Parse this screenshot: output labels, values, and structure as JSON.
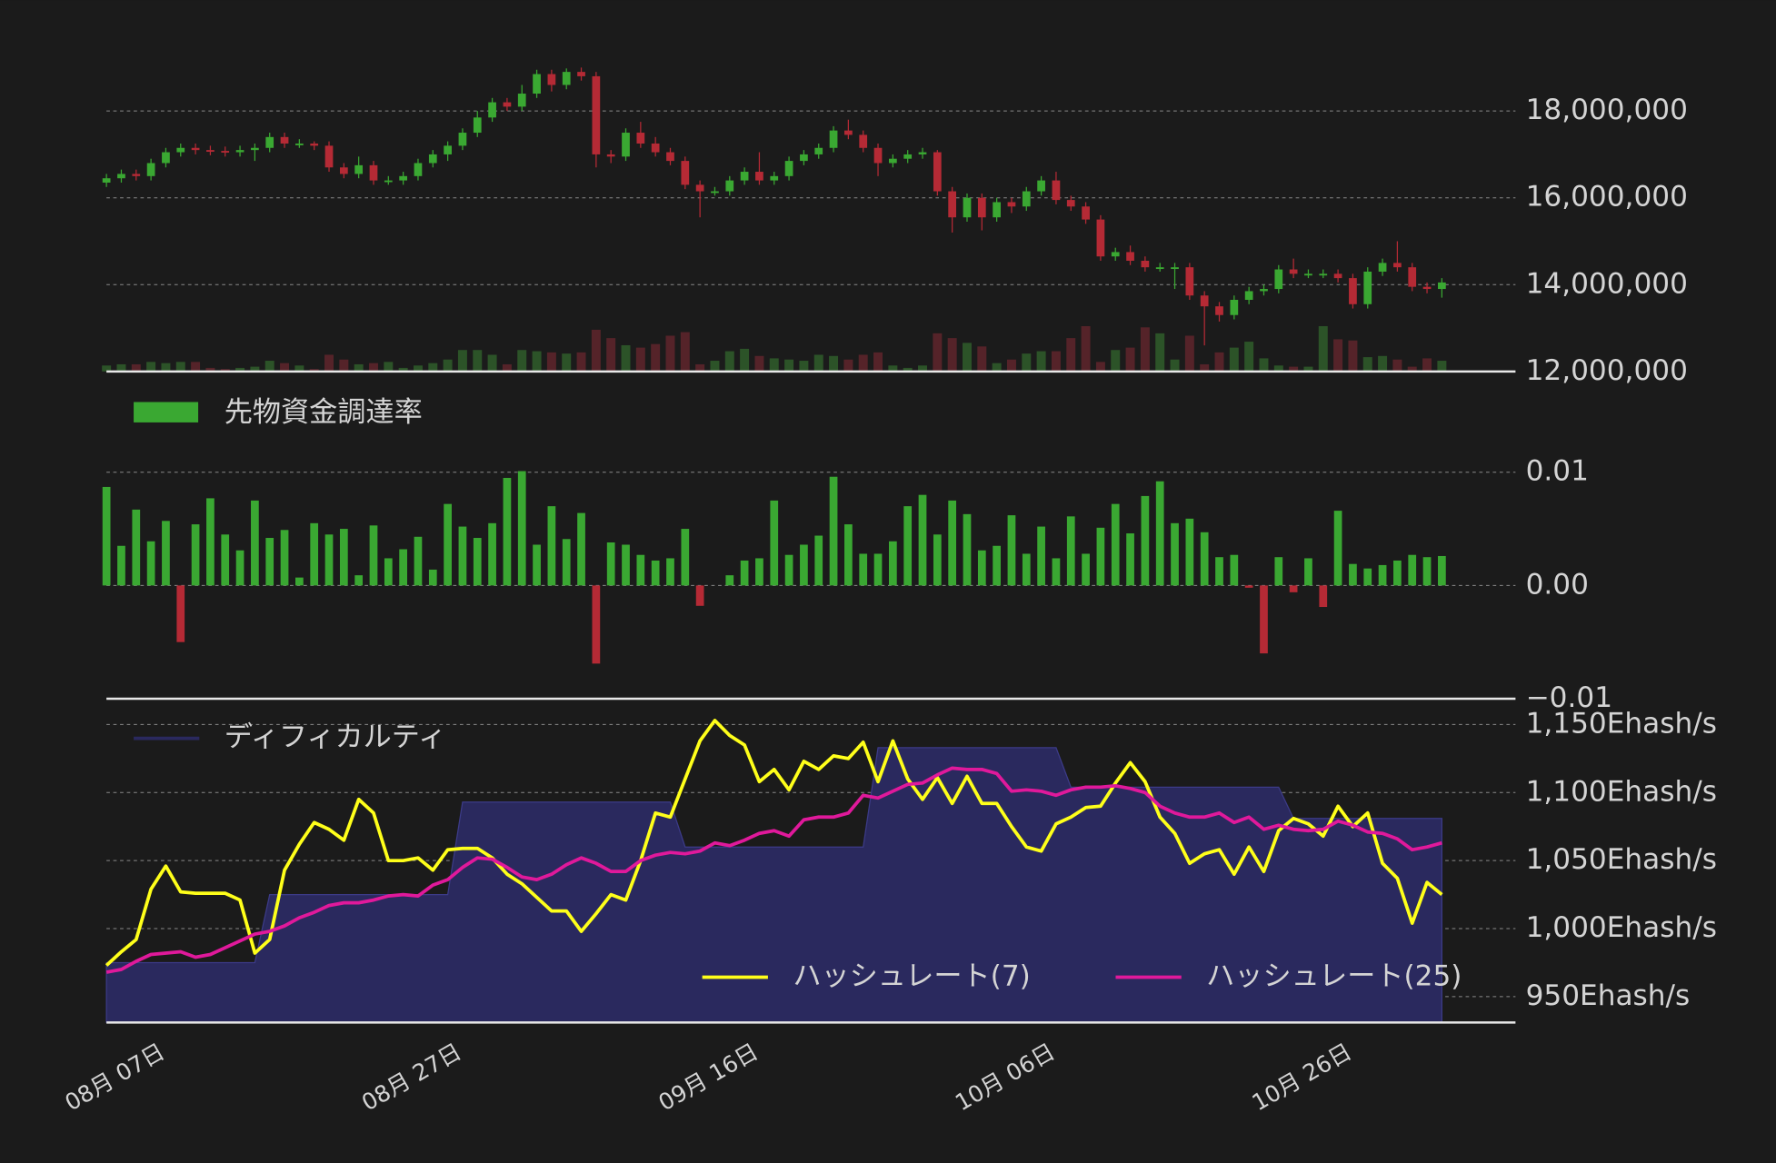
{
  "chart_data": [
    {
      "type": "candlestick",
      "grid": true,
      "up_color": "#3aa832",
      "down_color": "#b52a35",
      "volume_up_color": "#2c5328",
      "volume_down_color": "#552329",
      "ylim": [
        12000000,
        19120000
      ],
      "yticks": [
        {
          "value": 12000000,
          "label": "12,000,000"
        },
        {
          "value": 14000000,
          "label": "14,000,000"
        },
        {
          "value": 16000000,
          "label": "16,000,000"
        },
        {
          "value": 18000000,
          "label": "18,000,000"
        }
      ],
      "open": [
        16350000,
        16450000,
        16550000,
        16500000,
        16800000,
        17050000,
        17150000,
        17100000,
        17080000,
        17050000,
        17100000,
        17150000,
        17400000,
        17250000,
        17250000,
        17200000,
        16700000,
        16550000,
        16750000,
        16400000,
        16400000,
        16500000,
        16800000,
        17000000,
        17200000,
        17500000,
        17850000,
        18200000,
        18100000,
        18400000,
        18850000,
        18600000,
        18900000,
        18800000,
        17000000,
        16950000,
        17500000,
        17250000,
        17050000,
        16850000,
        16300000,
        16150000,
        16150000,
        16400000,
        16600000,
        16400000,
        16500000,
        16850000,
        17000000,
        17150000,
        17550000,
        17450000,
        17150000,
        16800000,
        16900000,
        17000000,
        17050000,
        16150000,
        15550000,
        16000000,
        15550000,
        15900000,
        15800000,
        16150000,
        16400000,
        15950000,
        15800000,
        15500000,
        14650000,
        14750000,
        14550000,
        14400000,
        14400000,
        14400000,
        13750000,
        13500000,
        13300000,
        13650000,
        13850000,
        13900000,
        14350000,
        14250000,
        14250000,
        14250000,
        14150000,
        13550000,
        14300000,
        14500000,
        14400000,
        13950000,
        13900000
      ],
      "high": [
        16550000,
        16650000,
        16650000,
        16900000,
        17150000,
        17250000,
        17250000,
        17200000,
        17180000,
        17200000,
        17250000,
        17500000,
        17500000,
        17350000,
        17300000,
        17300000,
        16800000,
        16950000,
        16850000,
        16500000,
        16600000,
        16900000,
        17100000,
        17300000,
        17600000,
        18000000,
        18300000,
        18300000,
        18600000,
        18950000,
        18950000,
        18980000,
        19000000,
        18900000,
        17100000,
        17600000,
        17750000,
        17400000,
        17150000,
        16950000,
        16400000,
        16250000,
        16500000,
        16700000,
        17050000,
        16600000,
        16950000,
        17100000,
        17250000,
        17650000,
        17800000,
        17550000,
        17250000,
        17000000,
        17100000,
        17150000,
        17100000,
        16250000,
        16100000,
        16100000,
        16000000,
        16000000,
        16250000,
        16500000,
        16600000,
        16050000,
        15900000,
        15600000,
        14850000,
        14900000,
        14650000,
        14500000,
        14500000,
        14500000,
        13850000,
        13600000,
        13750000,
        13950000,
        14000000,
        14450000,
        14600000,
        14350000,
        14350000,
        14350000,
        14250000,
        14400000,
        14600000,
        15000000,
        14500000,
        14050000,
        14150000
      ],
      "low": [
        16250000,
        16350000,
        16400000,
        16400000,
        16700000,
        16950000,
        17000000,
        16980000,
        16950000,
        16950000,
        16850000,
        17050000,
        17150000,
        17150000,
        17100000,
        16600000,
        16450000,
        16450000,
        16300000,
        16300000,
        16300000,
        16400000,
        16700000,
        16850000,
        17100000,
        17400000,
        17750000,
        18000000,
        18000000,
        18300000,
        18450000,
        18500000,
        18700000,
        16700000,
        16800000,
        16850000,
        17150000,
        16950000,
        16750000,
        16200000,
        15550000,
        16050000,
        16050000,
        16300000,
        16300000,
        16300000,
        16400000,
        16750000,
        16900000,
        17050000,
        17350000,
        17050000,
        16500000,
        16700000,
        16800000,
        16900000,
        16050000,
        15200000,
        15450000,
        15250000,
        15450000,
        15650000,
        15700000,
        16050000,
        15850000,
        15700000,
        15400000,
        14550000,
        14550000,
        14450000,
        14300000,
        14300000,
        13900000,
        13650000,
        12600000,
        13150000,
        13200000,
        13550000,
        13750000,
        13800000,
        14150000,
        14150000,
        14150000,
        14050000,
        13450000,
        13450000,
        14200000,
        14300000,
        13850000,
        13800000,
        13700000
      ],
      "close": [
        16450000,
        16550000,
        16500000,
        16800000,
        17050000,
        17150000,
        17100000,
        17080000,
        17050000,
        17100000,
        17150000,
        17400000,
        17250000,
        17250000,
        17200000,
        16700000,
        16550000,
        16750000,
        16400000,
        16400000,
        16500000,
        16800000,
        17000000,
        17200000,
        17500000,
        17850000,
        18200000,
        18100000,
        18400000,
        18850000,
        18600000,
        18900000,
        18800000,
        17000000,
        16950000,
        17500000,
        17250000,
        17050000,
        16850000,
        16300000,
        16150000,
        16150000,
        16400000,
        16600000,
        16400000,
        16500000,
        16850000,
        17000000,
        17150000,
        17550000,
        17450000,
        17150000,
        16800000,
        16900000,
        17000000,
        17050000,
        16150000,
        15550000,
        16000000,
        15550000,
        15900000,
        15800000,
        16150000,
        16400000,
        15950000,
        15800000,
        15500000,
        14650000,
        14750000,
        14550000,
        14400000,
        14400000,
        14400000,
        13750000,
        13500000,
        13300000,
        13650000,
        13850000,
        13900000,
        14350000,
        14250000,
        14250000,
        14250000,
        14150000,
        13550000,
        14300000,
        14500000,
        14400000,
        13950000,
        13900000,
        14050000
      ],
      "volume": [
        5,
        6,
        6,
        8,
        7,
        8,
        8,
        3,
        2,
        3,
        4,
        9,
        7,
        5,
        2,
        14,
        10,
        6,
        7,
        8,
        3,
        5,
        7,
        10,
        18,
        18,
        14,
        6,
        18,
        17,
        16,
        15,
        16,
        35,
        28,
        22,
        20,
        23,
        30,
        33,
        6,
        9,
        17,
        19,
        13,
        11,
        10,
        9,
        14,
        13,
        10,
        14,
        16,
        5,
        3,
        5,
        32,
        28,
        24,
        21,
        7,
        10,
        15,
        17,
        17,
        28,
        38,
        8,
        18,
        20,
        37,
        32,
        10,
        30,
        6,
        16,
        20,
        25,
        11,
        5,
        4,
        4,
        38,
        27,
        26,
        12,
        13,
        10,
        4,
        11,
        9
      ]
    },
    {
      "type": "bar",
      "grid": true,
      "negative_color": "#b52a35",
      "ylim": [
        -0.01,
        0.0177
      ],
      "yticks": [
        {
          "value": -0.01,
          "label": "−0.01"
        },
        {
          "value": 0,
          "label": "0.00"
        },
        0.01
      ],
      "series": [
        {
          "name": "先物資金調達率",
          "color": "#3aa832",
          "values": [
            0.0087,
            0.0035,
            0.0067,
            0.0039,
            0.0057,
            -0.005,
            0.0054,
            0.0077,
            0.0045,
            0.0031,
            0.0075,
            0.0042,
            0.0049,
            0.0007,
            0.0055,
            0.0045,
            0.005,
            0.0009,
            0.0053,
            0.0024,
            0.0032,
            0.0043,
            0.0014,
            0.0072,
            0.0052,
            0.0042,
            0.0055,
            0.0095,
            0.0101,
            0.0036,
            0.007,
            0.0041,
            0.0064,
            -0.0069,
            0.0038,
            0.0036,
            0.0027,
            0.0022,
            0.0024,
            0.005,
            -0.0018,
            0,
            0.0009,
            0.0022,
            0.0024,
            0.0075,
            0.0027,
            0.0036,
            0.0044,
            0.0096,
            0.0054,
            0.0028,
            0.0028,
            0.0039,
            0.007,
            0.008,
            0.0045,
            0.0075,
            0.0063,
            0.0031,
            0.0035,
            0.0062,
            0.0028,
            0.0052,
            0.0024,
            0.0061,
            0.0028,
            0.0051,
            0.0072,
            0.0046,
            0.0079,
            0.0092,
            0.0055,
            0.0059,
            0.0047,
            0.0025,
            0.0027,
            -0.0002,
            -0.006,
            0.0025,
            -0.0006,
            0.0024,
            -0.0019,
            0.0066,
            0.0019,
            0.0015,
            0.0018,
            0.0022,
            0.0027,
            0.0025,
            0.0026
          ]
        }
      ]
    },
    {
      "type": "line",
      "grid": true,
      "ylim": [
        931,
        1169
      ],
      "yticks": [
        {
          "value": 950,
          "label": "950Ehash/s"
        },
        {
          "value": 1000,
          "label": "1,000Ehash/s"
        },
        {
          "value": 1050,
          "label": "1,050Ehash/s"
        },
        {
          "value": 1100,
          "label": "1,100Ehash/s"
        },
        {
          "value": 1150,
          "label": "1,150Ehash/s"
        }
      ],
      "categories": [
        "08月 07日",
        null,
        null,
        null,
        null,
        null,
        null,
        null,
        null,
        null,
        null,
        null,
        null,
        null,
        null,
        null,
        null,
        null,
        null,
        null,
        "08月 27日",
        null,
        null,
        null,
        null,
        null,
        null,
        null,
        null,
        null,
        null,
        null,
        null,
        null,
        null,
        null,
        null,
        null,
        null,
        null,
        "09月 16日",
        null,
        null,
        null,
        null,
        null,
        null,
        null,
        null,
        null,
        null,
        null,
        null,
        null,
        null,
        null,
        null,
        null,
        null,
        null,
        "10月 06日",
        null,
        null,
        null,
        null,
        null,
        null,
        null,
        null,
        null,
        null,
        null,
        null,
        null,
        null,
        null,
        null,
        null,
        null,
        null,
        "10月 26日",
        null,
        null,
        null,
        null,
        null,
        null,
        null,
        null,
        null,
        null
      ],
      "series": [
        {
          "name": "ディフィカルティ",
          "color": "#2a295e",
          "fill": true,
          "values": [
            975,
            975,
            975,
            975,
            975,
            975,
            975,
            975,
            975,
            975,
            975,
            1025,
            1025,
            1025,
            1025,
            1025,
            1025,
            1025,
            1025,
            1025,
            1025,
            1025,
            1025,
            1025,
            1093,
            1093,
            1093,
            1093,
            1093,
            1093,
            1093,
            1093,
            1093,
            1093,
            1093,
            1093,
            1093,
            1093,
            1093,
            1060,
            1060,
            1060,
            1060,
            1060,
            1060,
            1060,
            1060,
            1060,
            1060,
            1060,
            1060,
            1060,
            1133,
            1133,
            1133,
            1133,
            1133,
            1133,
            1133,
            1133,
            1133,
            1133,
            1133,
            1133,
            1133,
            1104,
            1104,
            1104,
            1104,
            1104,
            1104,
            1104,
            1104,
            1104,
            1104,
            1104,
            1104,
            1104,
            1104,
            1104,
            1081,
            1081,
            1081,
            1081,
            1081,
            1081,
            1081,
            1081,
            1081,
            1081,
            1081
          ]
        },
        {
          "name": "ハッシュレート(7)",
          "color": "#ffff1a",
          "values": [
            973,
            983,
            992,
            1029,
            1046,
            1027,
            1026,
            1026,
            1026,
            1021,
            982,
            992,
            1043,
            1062,
            1078,
            1073,
            1065,
            1095,
            1085,
            1050,
            1050,
            1052,
            1043,
            1058,
            1059,
            1059,
            1052,
            1040,
            1033,
            1023,
            1013,
            1013,
            998,
            1011,
            1025,
            1021,
            1050,
            1085,
            1082,
            1110,
            1138,
            1153,
            1142,
            1135,
            1108,
            1117,
            1102,
            1123,
            1117,
            1127,
            1125,
            1137,
            1108,
            1138,
            1110,
            1095,
            1111,
            1092,
            1112,
            1092,
            1092,
            1075,
            1060,
            1057,
            1077,
            1082,
            1089,
            1090,
            1107,
            1122,
            1108,
            1082,
            1070,
            1048,
            1055,
            1058,
            1040,
            1060,
            1042,
            1072,
            1081,
            1077,
            1068,
            1090,
            1075,
            1085,
            1048,
            1037,
            1004,
            1034,
            1025
          ]
        },
        {
          "name": "ハッシュレート(25)",
          "color": "#e0199b",
          "values": [
            968,
            970,
            976,
            981,
            982,
            983,
            979,
            981,
            986,
            991,
            996,
            998,
            1002,
            1008,
            1012,
            1017,
            1019,
            1019,
            1021,
            1024,
            1025,
            1024,
            1032,
            1036,
            1045,
            1052,
            1051,
            1045,
            1038,
            1036,
            1040,
            1047,
            1052,
            1048,
            1042,
            1042,
            1050,
            1054,
            1056,
            1055,
            1057,
            1063,
            1061,
            1065,
            1070,
            1072,
            1068,
            1080,
            1082,
            1082,
            1085,
            1098,
            1096,
            1101,
            1106,
            1107,
            1113,
            1118,
            1117,
            1117,
            1114,
            1101,
            1102,
            1101,
            1098,
            1102,
            1104,
            1104,
            1105,
            1103,
            1100,
            1090,
            1085,
            1082,
            1082,
            1085,
            1078,
            1082,
            1073,
            1076,
            1073,
            1072,
            1073,
            1079,
            1076,
            1071,
            1070,
            1066,
            1058,
            1060,
            1063
          ]
        }
      ]
    }
  ]
}
